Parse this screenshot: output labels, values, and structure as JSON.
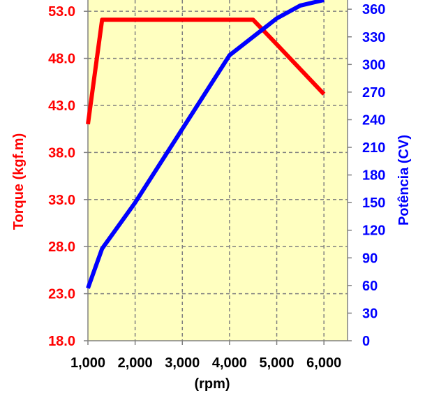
{
  "chart_data": {
    "type": "line",
    "xlabel": "(rpm)",
    "x_ticks": [
      "1,000",
      "2,000",
      "3,000",
      "4,000",
      "5,000",
      "6,000"
    ],
    "xlim": [
      1000,
      6500
    ],
    "y_left": {
      "label": "Torque (kgf.m)",
      "ticks": [
        "18.0",
        "23.0",
        "28.0",
        "33.0",
        "38.0",
        "43.0",
        "48.0",
        "53.0"
      ],
      "lim": [
        18,
        54.2
      ],
      "color": "#ff0000"
    },
    "y_right": {
      "label": "Potência (CV)",
      "ticks": [
        "0",
        "30",
        "60",
        "90",
        "120",
        "150",
        "180",
        "210",
        "240",
        "270",
        "300",
        "330",
        "360"
      ],
      "lim": [
        0,
        370
      ],
      "color": "#0000ff"
    },
    "grid": true,
    "plot_background": "#ffffc0",
    "series": [
      {
        "axis": "left",
        "color": "#ff0000",
        "x": [
          1000,
          1300,
          4500,
          5000,
          6000
        ],
        "values": [
          41,
          52.1,
          52.1,
          49.5,
          44.2
        ]
      },
      {
        "axis": "right",
        "color": "#0000ff",
        "x": [
          1000,
          1300,
          2000,
          3000,
          4000,
          4500,
          5000,
          5500,
          6000
        ],
        "values": [
          57,
          100,
          150,
          230,
          310,
          330,
          350,
          364,
          370
        ]
      }
    ]
  }
}
